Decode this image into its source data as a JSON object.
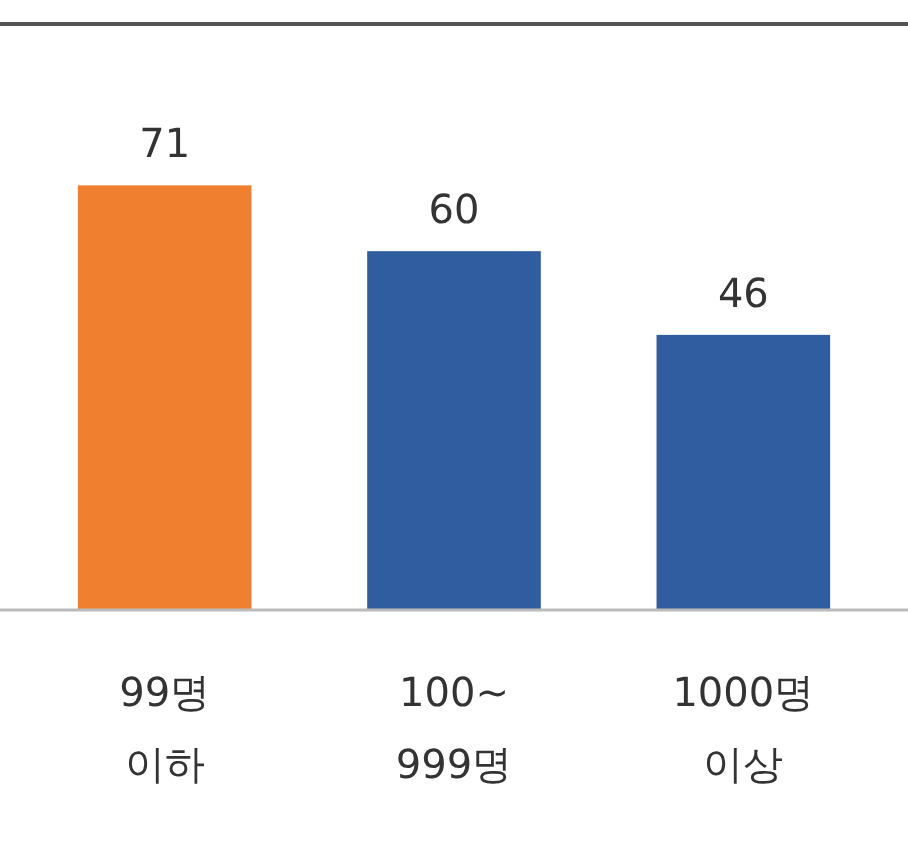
{
  "chart_data": {
    "type": "bar",
    "categories": [
      "99명 이하",
      "100~ 999명",
      "1000명 이상"
    ],
    "values": [
      71,
      60,
      46
    ],
    "colors": [
      "#f0802f",
      "#2f5d9f",
      "#2f5d9f"
    ],
    "data_labels": true
  }
}
